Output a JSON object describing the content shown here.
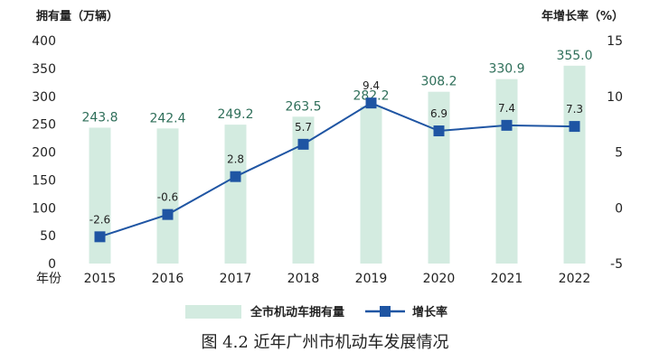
{
  "chart_data": {
    "type": "bar",
    "categories": [
      "2015",
      "2016",
      "2017",
      "2018",
      "2019",
      "2020",
      "2021",
      "2022"
    ],
    "series": [
      {
        "name": "全市机动车拥有量",
        "type": "bar",
        "axis": "left",
        "values": [
          243.8,
          242.4,
          249.2,
          263.5,
          282.2,
          308.2,
          330.9,
          355.0
        ],
        "labels": [
          "243.8",
          "242.4",
          "249.2",
          "263.5",
          "282.2",
          "308.2",
          "330.9",
          "355.0"
        ]
      },
      {
        "name": "增长率",
        "type": "line",
        "axis": "right",
        "values": [
          -2.6,
          -0.6,
          2.8,
          5.7,
          9.4,
          6.9,
          7.4,
          7.3
        ],
        "labels": [
          "-2.6",
          "-0.6",
          "2.8",
          "5.7",
          "9.4",
          "6.9",
          "7.4",
          "7.3"
        ]
      }
    ],
    "ylabel_left": "拥有量（万辆）",
    "ylabel_right": "年增长率（%）",
    "xlabel": "年份",
    "ylim_left": [
      0,
      400
    ],
    "yticks_left": [
      0,
      50,
      100,
      150,
      200,
      250,
      300,
      350,
      400
    ],
    "ylim_right": [
      -5,
      15
    ],
    "yticks_right": [
      -5,
      0,
      5,
      10,
      15
    ],
    "legend_position": "bottom",
    "grid": false,
    "colors": {
      "bar": "#d3ebe0",
      "line": "#1f55a3",
      "bar_label": "#2f6f5a",
      "text": "#222222"
    }
  },
  "caption": "图 4.2  近年广州市机动车发展情况"
}
